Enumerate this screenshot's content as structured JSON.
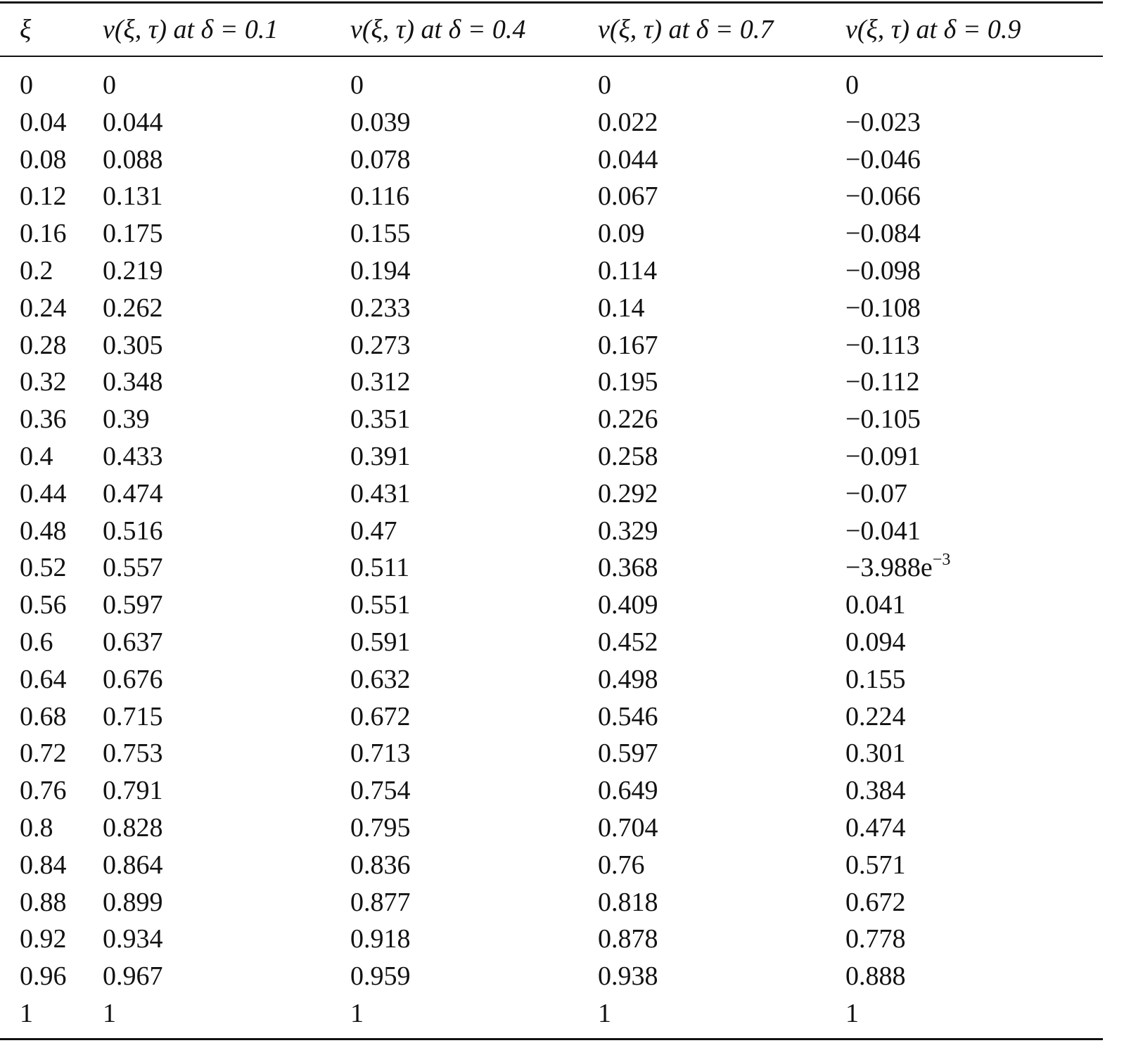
{
  "table": {
    "header": [
      "ξ",
      "v(ξ, τ) at δ = 0.1",
      "v(ξ, τ) at δ = 0.4",
      "v(ξ, τ) at δ = 0.7",
      "v(ξ, τ) at δ = 0.9"
    ],
    "rows": [
      [
        "0",
        "0",
        "0",
        "0",
        "0"
      ],
      [
        "0.04",
        "0.044",
        "0.039",
        "0.022",
        "−0.023"
      ],
      [
        "0.08",
        "0.088",
        "0.078",
        "0.044",
        "−0.046"
      ],
      [
        "0.12",
        "0.131",
        "0.116",
        "0.067",
        "−0.066"
      ],
      [
        "0.16",
        "0.175",
        "0.155",
        "0.09",
        "−0.084"
      ],
      [
        "0.2",
        "0.219",
        "0.194",
        "0.114",
        "−0.098"
      ],
      [
        "0.24",
        "0.262",
        "0.233",
        "0.14",
        "−0.108"
      ],
      [
        "0.28",
        "0.305",
        "0.273",
        "0.167",
        "−0.113"
      ],
      [
        "0.32",
        "0.348",
        "0.312",
        "0.195",
        "−0.112"
      ],
      [
        "0.36",
        "0.39",
        "0.351",
        "0.226",
        "−0.105"
      ],
      [
        "0.4",
        "0.433",
        "0.391",
        "0.258",
        "−0.091"
      ],
      [
        "0.44",
        "0.474",
        "0.431",
        "0.292",
        "−0.07"
      ],
      [
        "0.48",
        "0.516",
        "0.47",
        "0.329",
        "−0.041"
      ],
      [
        "0.52",
        "0.557",
        "0.511",
        "0.368",
        {
          "base": "−3.988e",
          "sup": "−3"
        }
      ],
      [
        "0.56",
        "0.597",
        "0.551",
        "0.409",
        "0.041"
      ],
      [
        "0.6",
        "0.637",
        "0.591",
        "0.452",
        "0.094"
      ],
      [
        "0.64",
        "0.676",
        "0.632",
        "0.498",
        "0.155"
      ],
      [
        "0.68",
        "0.715",
        "0.672",
        "0.546",
        "0.224"
      ],
      [
        "0.72",
        "0.753",
        "0.713",
        "0.597",
        "0.301"
      ],
      [
        "0.76",
        "0.791",
        "0.754",
        "0.649",
        "0.384"
      ],
      [
        "0.8",
        "0.828",
        "0.795",
        "0.704",
        "0.474"
      ],
      [
        "0.84",
        "0.864",
        "0.836",
        "0.76",
        "0.571"
      ],
      [
        "0.88",
        "0.899",
        "0.877",
        "0.818",
        "0.672"
      ],
      [
        "0.92",
        "0.934",
        "0.918",
        "0.878",
        "0.778"
      ],
      [
        "0.96",
        "0.967",
        "0.959",
        "0.938",
        "0.888"
      ],
      [
        "1",
        "1",
        "1",
        "1",
        "1"
      ]
    ]
  }
}
